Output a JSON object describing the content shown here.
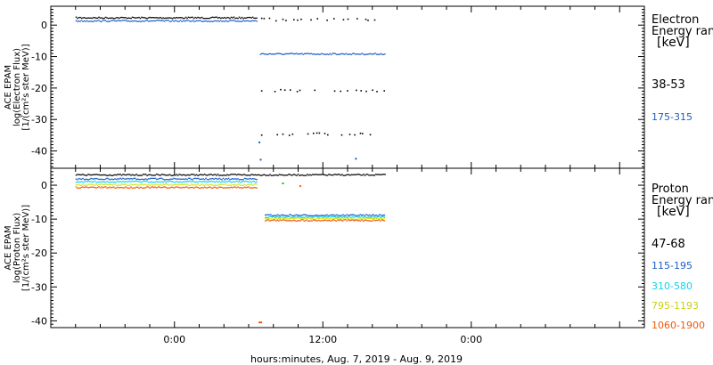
{
  "colors": {
    "black": "#000000",
    "blue": "#1e5fc8",
    "cyan": "#14d2e6",
    "yellow": "#d2e614",
    "orange": "#f05a0a",
    "green": "#19b419"
  },
  "footer": {
    "xlabel": "hours:minutes, Aug.  7, 2019 - Aug.  9, 2019"
  },
  "chart_data": [
    {
      "type": "scatter",
      "panel": "electron",
      "ylabel_lines": [
        "ACE EPAM",
        "log(Electron Flux)",
        "[1/(cm²s ster MeV)]"
      ],
      "ylim": [
        -45.5,
        6
      ],
      "yticks": [
        0,
        -10,
        -20,
        -30,
        -40
      ],
      "xlim_hours": [
        -10,
        38
      ],
      "legend": {
        "title_lines": [
          "Electron",
          "Energy range",
          "[keV]"
        ],
        "items": [
          "38-53",
          "175-315"
        ]
      },
      "series": [
        {
          "name": "38-53",
          "color": "#000000",
          "segments": [
            {
              "x": [
                -8,
                6.7
              ],
              "y": 2.5
            },
            {
              "x": [
                7,
                17
              ],
              "y": 2.0,
              "sparse": true
            },
            {
              "x": [
                7,
                17
              ],
              "y": -20.5,
              "sparse": true
            },
            {
              "x": [
                7,
                17
              ],
              "y": -34.5,
              "sparse": true
            }
          ]
        },
        {
          "name": "175-315",
          "color": "#1e5fc8",
          "segments": [
            {
              "x": [
                -8,
                6.7
              ],
              "y": 1.5
            },
            {
              "x": [
                6.9,
                17
              ],
              "y": -9.0
            }
          ]
        }
      ]
    },
    {
      "type": "scatter",
      "panel": "proton",
      "ylabel_lines": [
        "ACE EPAM",
        "log(Proton Flux)",
        "[1/(cm²s ster MeV)]"
      ],
      "ylim": [
        -42,
        5
      ],
      "yticks": [
        0,
        -10,
        -20,
        -30,
        -40
      ],
      "xlim_hours": [
        -10,
        38
      ],
      "xticks": [
        0,
        12,
        24
      ],
      "xtick_labels": [
        "0:00",
        "12:00",
        "0:00"
      ],
      "legend": {
        "title_lines": [
          "Proton",
          "Energy range",
          "[keV]"
        ],
        "items": [
          "47-68",
          "115-195",
          "310-580",
          "795-1193",
          "1060-1900"
        ]
      },
      "series": [
        {
          "name": "47-68",
          "color": "#000000",
          "segments": [
            {
              "x": [
                -8,
                17
              ],
              "y": 3.2
            }
          ]
        },
        {
          "name": "115-195",
          "color": "#1e5fc8",
          "segments": [
            {
              "x": [
                -8,
                6.7
              ],
              "y": 2.0
            },
            {
              "x": [
                7.3,
                17
              ],
              "y": -8.7
            }
          ]
        },
        {
          "name": "310-580",
          "color": "#14d2e6",
          "segments": [
            {
              "x": [
                -8,
                6.7
              ],
              "y": 1.2
            },
            {
              "x": [
                7.3,
                17
              ],
              "y": -9.2
            }
          ]
        },
        {
          "name": "795-1193",
          "color": "#d2e614",
          "segments": [
            {
              "x": [
                -8,
                6.7
              ],
              "y": 0.3
            },
            {
              "x": [
                7.3,
                17
              ],
              "y": -9.7
            }
          ]
        },
        {
          "name": "1060-1900",
          "color": "#f05a0a",
          "segments": [
            {
              "x": [
                -8,
                6.7
              ],
              "y": -0.5
            },
            {
              "x": [
                7.3,
                17
              ],
              "y": -10.2
            }
          ]
        }
      ]
    }
  ]
}
